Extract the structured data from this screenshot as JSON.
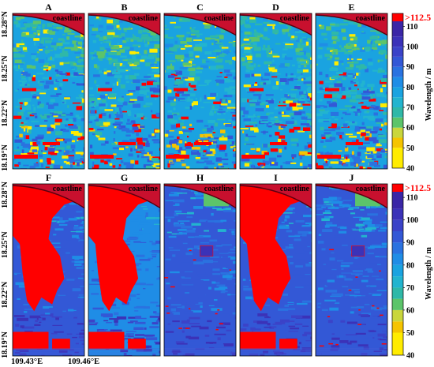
{
  "chart_data": {
    "type": "heatmap",
    "panels_top": [
      "A",
      "B",
      "C",
      "D",
      "E"
    ],
    "panels_bottom": [
      "F",
      "G",
      "H",
      "I",
      "J"
    ],
    "annotation": "coastline",
    "y_ticks": [
      "18.28°N",
      "18.25°N",
      "18.22°N",
      "18.19°N"
    ],
    "x_ticks": [
      "109.43°E",
      "109.46°E"
    ],
    "colorbar": {
      "label": "Wavelength / m",
      "over_label": ">112.5",
      "ticks": [
        110,
        100,
        90,
        80,
        70,
        60,
        50,
        40
      ],
      "range": [
        40,
        112.5
      ],
      "bands": [
        {
          "from": 40,
          "to": 50,
          "color": "#ffec00"
        },
        {
          "from": 50,
          "to": 55,
          "color": "#f5c400"
        },
        {
          "from": 55,
          "to": 60,
          "color": "#c9d63c"
        },
        {
          "from": 60,
          "to": 65,
          "color": "#5cc46a"
        },
        {
          "from": 65,
          "to": 70,
          "color": "#2fb8a8"
        },
        {
          "from": 70,
          "to": 75,
          "color": "#22b4cf"
        },
        {
          "from": 75,
          "to": 80,
          "color": "#1aa3e0"
        },
        {
          "from": 80,
          "to": 85,
          "color": "#1f8de6"
        },
        {
          "from": 85,
          "to": 90,
          "color": "#2a72e0"
        },
        {
          "from": 90,
          "to": 95,
          "color": "#3358d6"
        },
        {
          "from": 95,
          "to": 100,
          "color": "#3b43c8"
        },
        {
          "from": 100,
          "to": 105,
          "color": "#3b32b8"
        },
        {
          "from": 105,
          "to": 112.5,
          "color": "#3a26a6"
        }
      ],
      "over_color": "#ff0000"
    },
    "panel_colors": {
      "A": {
        "dominant": "#1aa3e0",
        "mix": [
          "#2fb8a8",
          "#5cc46a",
          "#2a72e0",
          "#ffec00",
          "#ff0000",
          "#22b4cf",
          "#3358d6"
        ]
      },
      "B": {
        "dominant": "#1aa3e0",
        "mix": [
          "#2fb8a8",
          "#5cc46a",
          "#2a72e0",
          "#ffec00",
          "#ff0000",
          "#22b4cf",
          "#3358d6"
        ]
      },
      "C": {
        "dominant": "#1aa3e0",
        "mix": [
          "#2fb8a8",
          "#5cc46a",
          "#2a72e0",
          "#ffec00",
          "#ff0000",
          "#22b4cf",
          "#3358d6"
        ]
      },
      "D": {
        "dominant": "#1aa3e0",
        "mix": [
          "#2fb8a8",
          "#5cc46a",
          "#2a72e0",
          "#ffec00",
          "#ff0000",
          "#22b4cf",
          "#3358d6"
        ]
      },
      "E": {
        "dominant": "#1aa3e0",
        "mix": [
          "#2fb8a8",
          "#5cc46a",
          "#2a72e0",
          "#ffec00",
          "#ff0000",
          "#22b4cf",
          "#3358d6"
        ]
      },
      "F": {
        "dominant": "#3358d6",
        "red_fraction": 0.55
      },
      "G": {
        "dominant": "#1f8de6",
        "red_fraction": 0.45
      },
      "H": {
        "dominant": "#3358d6",
        "red_fraction": 0.02
      },
      "I": {
        "dominant": "#3358d6",
        "red_fraction": 0.5
      },
      "J": {
        "dominant": "#3358d6",
        "red_fraction": 0.02
      }
    }
  }
}
